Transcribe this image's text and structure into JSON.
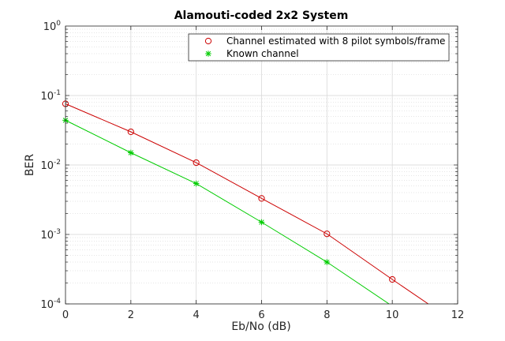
{
  "chart_data": {
    "type": "line",
    "title": "Alamouti-coded 2x2 System",
    "xlabel": "Eb/No (dB)",
    "ylabel": "BER",
    "xlim": [
      0,
      12
    ],
    "ylim": [
      0.0001,
      1
    ],
    "yscale": "log",
    "grid": "major and minor",
    "legend_position": "top-right",
    "x_ticks": [
      "0",
      "2",
      "4",
      "6",
      "8",
      "10",
      "12"
    ],
    "y_ticks": [
      {
        "base": "10",
        "exp": "0"
      },
      {
        "base": "10",
        "exp": "-1"
      },
      {
        "base": "10",
        "exp": "-2"
      },
      {
        "base": "10",
        "exp": "-3"
      },
      {
        "base": "10",
        "exp": "-4"
      }
    ],
    "series": [
      {
        "name": "Channel estimated with 8 pilot symbols/frame",
        "color": "#cc0000",
        "marker": "circle",
        "x": [
          0,
          2,
          4,
          6,
          8,
          10
        ],
        "values": [
          0.076,
          0.03,
          0.0108,
          0.0033,
          0.00102,
          0.000225
        ],
        "line_x": [
          0,
          2,
          4,
          6,
          8,
          10,
          11.1
        ],
        "line_y": [
          0.076,
          0.03,
          0.0108,
          0.0033,
          0.00102,
          0.000225,
          0.0001
        ]
      },
      {
        "name": "Known channel",
        "color": "#00cc00",
        "marker": "star",
        "x": [
          0,
          2,
          4,
          6,
          8
        ],
        "values": [
          0.044,
          0.015,
          0.0054,
          0.0015,
          0.0004
        ],
        "line_x": [
          0,
          2,
          4,
          6,
          8,
          9.9
        ],
        "line_y": [
          0.044,
          0.015,
          0.0054,
          0.0015,
          0.0004,
          0.0001
        ]
      }
    ]
  }
}
